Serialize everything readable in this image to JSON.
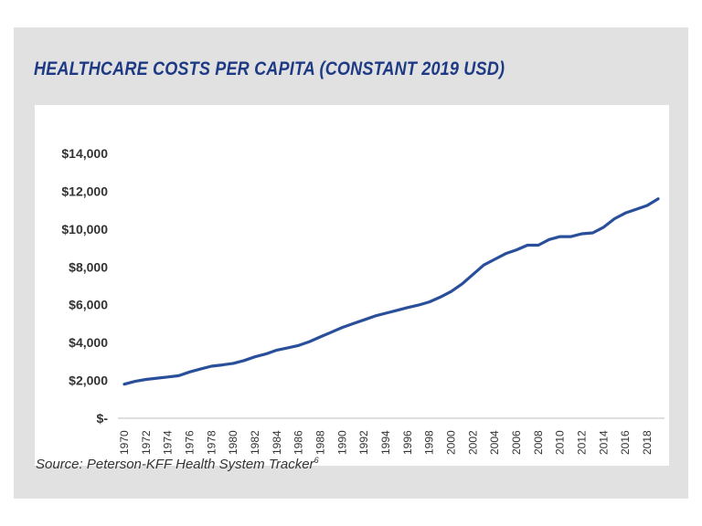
{
  "chart_data": {
    "type": "line",
    "title": "HEALTHCARE COSTS PER CAPITA (CONSTANT 2019 USD)",
    "xlabel": "",
    "ylabel": "",
    "ylim": [
      0,
      14000
    ],
    "y_ticks": [
      0,
      2000,
      4000,
      6000,
      8000,
      10000,
      12000,
      14000
    ],
    "y_tick_labels": [
      "$-",
      "$2,000",
      "$4,000",
      "$6,000",
      "$8,000",
      "$10,000",
      "$12,000",
      "$14,000"
    ],
    "x_tick_labels": [
      "1970",
      "1972",
      "1974",
      "1976",
      "1978",
      "1980",
      "1982",
      "1984",
      "1986",
      "1988",
      "1990",
      "1992",
      "1994",
      "1996",
      "1998",
      "2000",
      "2002",
      "2004",
      "2006",
      "2008",
      "2010",
      "2012",
      "2014",
      "2016",
      "2018"
    ],
    "grid": false,
    "legend": "none",
    "color": "#2a4f9a",
    "x": [
      1970,
      1971,
      1972,
      1973,
      1974,
      1975,
      1976,
      1977,
      1978,
      1979,
      1980,
      1981,
      1982,
      1983,
      1984,
      1985,
      1986,
      1987,
      1988,
      1989,
      1990,
      1991,
      1992,
      1993,
      1994,
      1995,
      1996,
      1997,
      1998,
      1999,
      2000,
      2001,
      2002,
      2003,
      2004,
      2005,
      2006,
      2007,
      2008,
      2009,
      2010,
      2011,
      2012,
      2013,
      2014,
      2015,
      2016,
      2017,
      2018,
      2019
    ],
    "values": [
      1800,
      1950,
      2050,
      2120,
      2180,
      2250,
      2450,
      2600,
      2750,
      2820,
      2900,
      3050,
      3250,
      3400,
      3600,
      3720,
      3850,
      4050,
      4300,
      4550,
      4800,
      5000,
      5200,
      5400,
      5550,
      5700,
      5850,
      5980,
      6150,
      6400,
      6700,
      7100,
      7600,
      8100,
      8400,
      8700,
      8900,
      9150,
      9150,
      9450,
      9600,
      9600,
      9750,
      9800,
      10100,
      10550,
      10850,
      11050,
      11250,
      11600
    ]
  },
  "footer": {
    "source": "Source: Peterson-KFF Health System Tracker",
    "note_marker": "6"
  }
}
